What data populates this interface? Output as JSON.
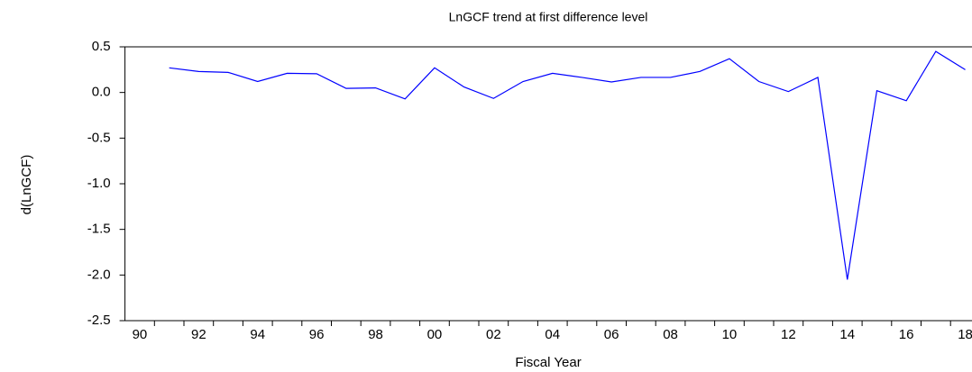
{
  "chart_data": {
    "type": "line",
    "title": "LnGCF trend at first difference level",
    "x_label": "Fiscal Year",
    "y_label": "d(LnGCF)",
    "categories": [
      "90",
      null,
      "92",
      null,
      "94",
      null,
      "96",
      null,
      "98",
      null,
      "00",
      null,
      "02",
      null,
      "04",
      null,
      "06",
      null,
      "08",
      null,
      "10",
      null,
      "12",
      null,
      "14",
      null,
      "16",
      null,
      "18"
    ],
    "series": [
      {
        "name": "d(LnGCF)",
        "color": "#0000ff",
        "values": [
          null,
          0.27,
          0.23,
          0.22,
          0.12,
          0.21,
          0.205,
          0.045,
          0.05,
          -0.07,
          0.27,
          0.06,
          -0.065,
          0.12,
          0.21,
          0.165,
          0.115,
          0.165,
          0.165,
          0.23,
          0.37,
          0.12,
          0.01,
          0.165,
          -2.05,
          0.02,
          -0.09,
          0.45,
          0.25
        ]
      }
    ],
    "ylim": [
      -2.5,
      0.5
    ],
    "yticks": [
      -2.5,
      {
        "value": -2,
        "label": "-2.0"
      },
      -1.5,
      {
        "value": -1,
        "label": "-1.0"
      },
      -0.5,
      {
        "value": 0,
        "label": "0.0"
      },
      0.5
    ],
    "grid": false
  }
}
